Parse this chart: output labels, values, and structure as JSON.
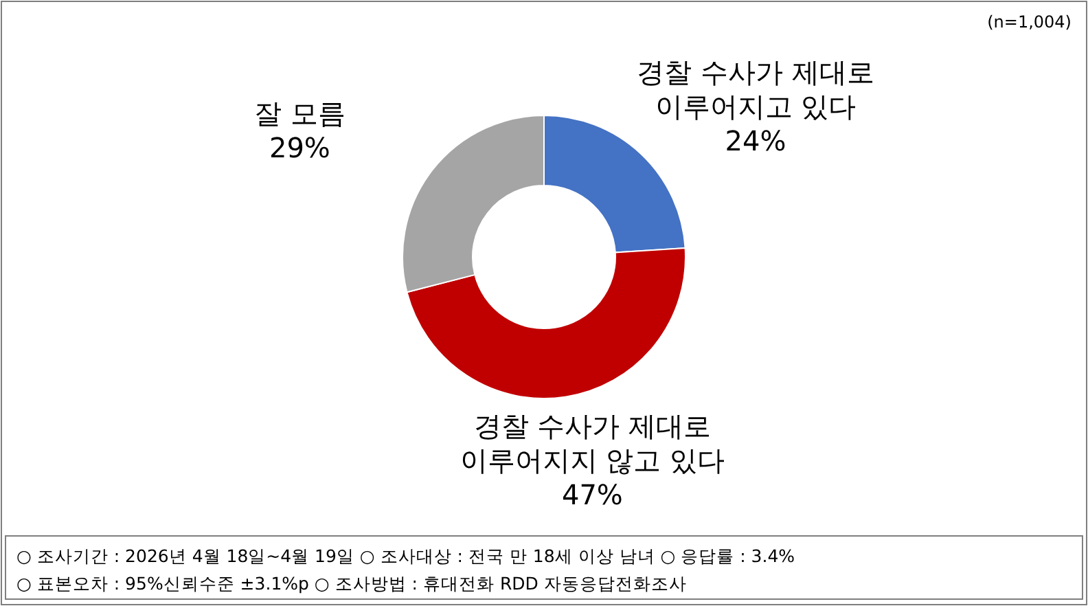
{
  "chart_data": {
    "type": "donut",
    "categories": [
      "경찰 수사가 제대로\n이루어지고 있다",
      "경찰 수사가 제대로\n이루어지지 않고 있다",
      "잘 모름"
    ],
    "values": [
      24,
      47,
      29
    ],
    "colors": [
      "#4472c4",
      "#c00000",
      "#a5a5a5"
    ],
    "value_labels": [
      "24%",
      "47%",
      "29%"
    ],
    "annotations": [
      "(n=1,004)",
      "○ 조사기간 : 2026년 4월 18일~4월 19일 ○ 조사대상 : 전국 만 18세 이상 남녀 ○ 응답률 : 3.4%",
      "○ 표본오차 : 95%신뢰수준 ±3.1%p ○ 조사방법 : 휴대전화 RDD 자동응답전화조사"
    ]
  }
}
